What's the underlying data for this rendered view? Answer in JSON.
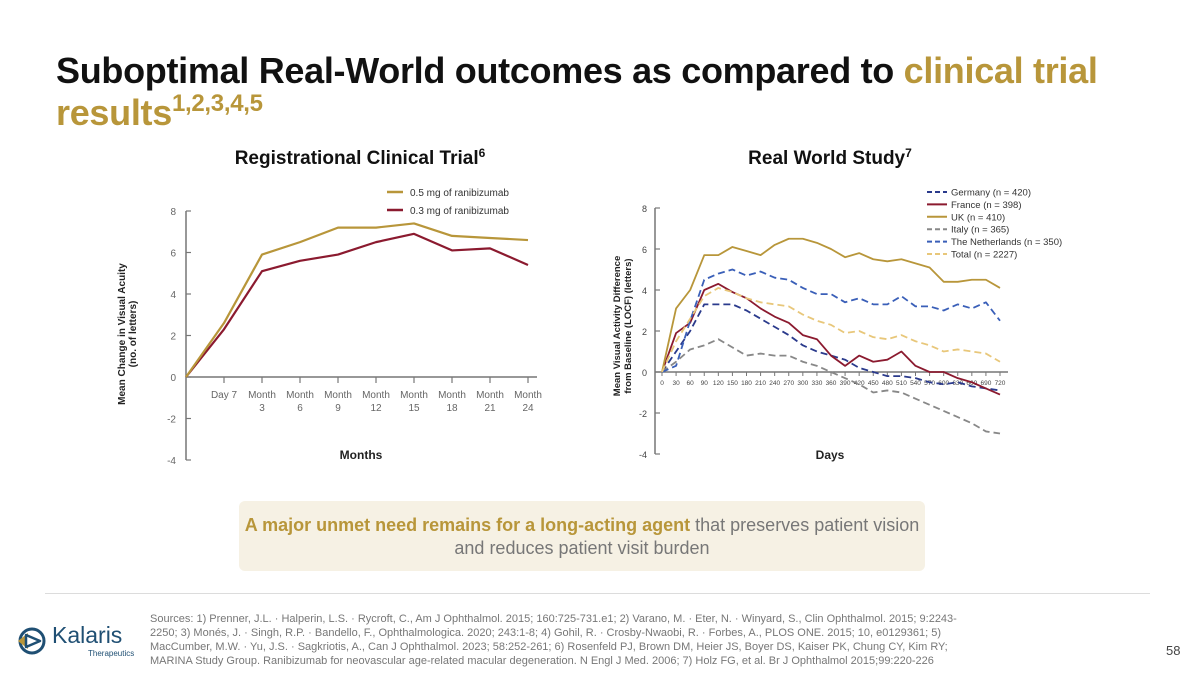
{
  "slide": {
    "title_main": "Suboptimal Real-World outcomes as compared to ",
    "title_highlight": "clinical trial results",
    "title_refs": "1,2,3,4,5",
    "callout_strong": "A major unmet need remains for a long-acting agent",
    "callout_rest": " that preserves patient vision and reduces patient visit burden",
    "sources": "Sources: 1) Prenner, J.L. · Halperin, L.S. · Rycroft, C., Am J Ophthalmol. 2015; 160:725-731.e1; 2) Varano, M. · Eter, N. · Winyard, S., Clin Ophthalmol. 2015; 9:2243-2250; 3) Monés, J. · Singh, R.P. · Bandello, F., Ophthalmologica. 2020; 243:1-8; 4) Gohil, R. · Crosby-Nwaobi, R. · Forbes, A., PLOS ONE. 2015; 10, e0129361; 5) MacCumber, M.W. · Yu, J.S. · Sagkriotis, A., Can J Ophthalmol. 2023; 58:252-261; 6) Rosenfeld PJ, Brown DM, Heier JS, Boyer DS, Kaiser PK, Chung CY, Kim RY; MARINA Study Group. Ranibizumab for neovascular age-related macular degeneration. N Engl J Med. 2006; 7) Holz FG, et al. Br J Ophthalmol 2015;99:220-226",
    "logo_name": "Kalaris",
    "logo_sub": "Therapeutics",
    "page_number": "58",
    "accent_color": "#b8963a"
  },
  "chart_data": [
    {
      "type": "line",
      "title": "Registrational Clinical Trial",
      "title_ref": "6",
      "xlabel": "Months",
      "ylabel": "Mean Change in Visual Acuity (no. of letters)",
      "ylim": [
        -4,
        8
      ],
      "yticks": [
        -4,
        -2,
        0,
        2,
        4,
        6,
        8
      ],
      "categories": [
        "Day 7",
        "Month 3",
        "Month 6",
        "Month 9",
        "Month 12",
        "Month 15",
        "Month 18",
        "Month 21",
        "Month 24"
      ],
      "x": [
        0,
        1,
        2,
        3,
        4,
        5,
        6,
        7,
        8,
        9
      ],
      "x_note": "x=0 is baseline (axis origin); x=1..9 correspond to categories",
      "series": [
        {
          "name": "0.5 mg of ranibizumab",
          "color": "#b8963a",
          "dash": "solid",
          "values": [
            0,
            2.6,
            5.9,
            6.5,
            7.2,
            7.2,
            7.4,
            6.8,
            6.7,
            6.6
          ]
        },
        {
          "name": "0.3 mg of ranibizumab",
          "color": "#8b1a2f",
          "dash": "solid",
          "values": [
            0,
            2.3,
            5.1,
            5.6,
            5.9,
            6.5,
            6.9,
            6.1,
            6.2,
            5.4
          ]
        }
      ]
    },
    {
      "type": "line",
      "title": "Real World Study",
      "title_ref": "7",
      "xlabel": "Days",
      "ylabel": "Mean Visual Activity Difference from Baseline (LOCF) (letters)",
      "ylim": [
        -4,
        8
      ],
      "yticks": [
        -4,
        -2,
        0,
        2,
        4,
        6,
        8
      ],
      "xlim": [
        0,
        720
      ],
      "xticks": [
        0,
        30,
        60,
        90,
        120,
        150,
        180,
        210,
        240,
        270,
        300,
        330,
        360,
        390,
        420,
        450,
        480,
        510,
        540,
        570,
        600,
        630,
        660,
        690,
        720
      ],
      "x": [
        0,
        30,
        60,
        90,
        120,
        150,
        180,
        210,
        240,
        270,
        300,
        330,
        360,
        390,
        420,
        450,
        480,
        510,
        540,
        570,
        600,
        630,
        660,
        690,
        720
      ],
      "series": [
        {
          "name": "Germany (n = 420)",
          "color": "#2a3a8c",
          "dash": "dash",
          "values": [
            0,
            1.0,
            2.0,
            3.3,
            3.3,
            3.3,
            3.0,
            2.6,
            2.2,
            1.8,
            1.3,
            1.0,
            0.8,
            0.6,
            0.2,
            0.0,
            -0.2,
            -0.2,
            -0.3,
            -0.5,
            -0.6,
            -0.5,
            -0.7,
            -0.8,
            -0.9
          ]
        },
        {
          "name": "France (n = 398)",
          "color": "#8b1a2f",
          "dash": "solid",
          "values": [
            0,
            1.9,
            2.4,
            4.0,
            4.3,
            3.9,
            3.6,
            3.1,
            2.7,
            2.4,
            1.8,
            1.6,
            0.8,
            0.3,
            0.8,
            0.5,
            0.6,
            1.0,
            0.3,
            0.0,
            0.0,
            -0.3,
            -0.5,
            -0.8,
            -1.1
          ]
        },
        {
          "name": "UK (n = 410)",
          "color": "#b8963a",
          "dash": "solid",
          "values": [
            0,
            3.1,
            4.0,
            5.7,
            5.7,
            6.1,
            5.9,
            5.7,
            6.2,
            6.5,
            6.5,
            6.3,
            6.0,
            5.6,
            5.8,
            5.5,
            5.4,
            5.5,
            5.3,
            5.1,
            4.4,
            4.4,
            4.5,
            4.5,
            4.1
          ]
        },
        {
          "name": "Italy (n = 365)",
          "color": "#888888",
          "dash": "dash",
          "values": [
            0,
            0.5,
            1.1,
            1.3,
            1.6,
            1.2,
            0.8,
            0.9,
            0.8,
            0.8,
            0.5,
            0.3,
            0.0,
            -0.3,
            -0.6,
            -1.0,
            -0.9,
            -1.0,
            -1.3,
            -1.6,
            -1.9,
            -2.2,
            -2.5,
            -2.9,
            -3.0
          ]
        },
        {
          "name": "The Netherlands (n = 350)",
          "color": "#3a5fb8",
          "dash": "dash",
          "values": [
            0,
            0.3,
            2.5,
            4.5,
            4.8,
            5.0,
            4.7,
            4.9,
            4.6,
            4.5,
            4.1,
            3.8,
            3.8,
            3.4,
            3.6,
            3.3,
            3.3,
            3.7,
            3.2,
            3.2,
            3.0,
            3.3,
            3.1,
            3.4,
            2.5
          ]
        },
        {
          "name": "Total (n = 2227)",
          "color": "#e8c77a",
          "dash": "dash",
          "values": [
            0,
            1.5,
            2.6,
            3.7,
            4.1,
            3.9,
            3.6,
            3.4,
            3.3,
            3.2,
            2.8,
            2.5,
            2.3,
            1.9,
            2.0,
            1.7,
            1.6,
            1.8,
            1.5,
            1.3,
            1.0,
            1.1,
            1.0,
            0.9,
            0.5
          ]
        }
      ]
    }
  ]
}
